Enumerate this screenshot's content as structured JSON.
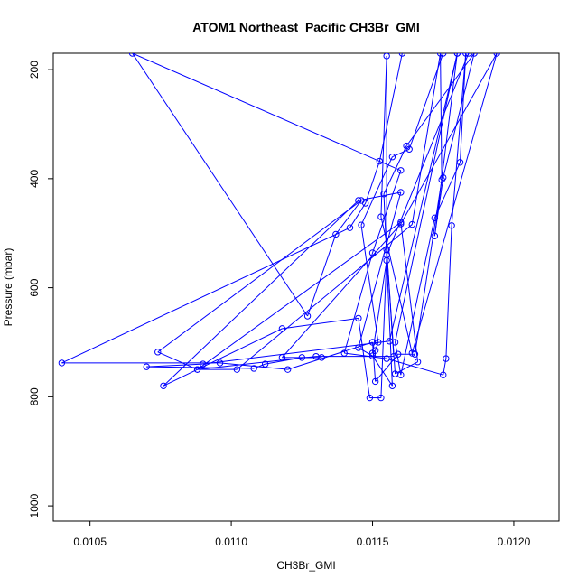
{
  "chart_data": {
    "type": "line",
    "title": "ATOM1 Northeast_Pacific CH3Br_GMI",
    "xlabel": "CH3Br_GMI",
    "ylabel": "Pressure (mbar)",
    "xlim": [
      0.01037,
      0.01216
    ],
    "ylim": [
      1028,
      170
    ],
    "y_reversed": true,
    "grid": false,
    "xticks": [
      0.0105,
      0.011,
      0.0115,
      0.012
    ],
    "xtick_labels": [
      "0.0105",
      "0.0110",
      "0.0115",
      "0.0120"
    ],
    "yticks": [
      200,
      400,
      600,
      800,
      1000
    ],
    "ytick_labels": [
      "200",
      "400",
      "600",
      "800",
      "1000"
    ],
    "colors": {
      "series": "#0000ff"
    },
    "points": [
      [
        0.011605,
        170
      ],
      [
        0.011525,
        368
      ],
      [
        0.011475,
        445
      ],
      [
        0.01142,
        490
      ],
      [
        0.0104,
        738
      ],
      [
        0.01096,
        738
      ],
      [
        0.0112,
        750
      ],
      [
        0.0115,
        700
      ],
      [
        0.01151,
        772
      ],
      [
        0.01159,
        722
      ],
      [
        0.01165,
        722
      ],
      [
        0.011745,
        402
      ],
      [
        0.01174,
        170
      ],
      [
        0.01164,
        484
      ],
      [
        0.01102,
        750
      ],
      [
        0.01088,
        750
      ],
      [
        0.0113,
        726
      ],
      [
        0.011575,
        726
      ],
      [
        0.01155,
        530
      ],
      [
        0.01158,
        758
      ],
      [
        0.01166,
        736
      ],
      [
        0.0116,
        480
      ],
      [
        0.01088,
        750
      ],
      [
        0.01074,
        718
      ],
      [
        0.01146,
        440
      ],
      [
        0.01137,
        502
      ],
      [
        0.01127,
        652
      ],
      [
        0.01065,
        170
      ],
      [
        0.0116,
        385
      ],
      [
        0.0115,
        536
      ],
      [
        0.0114,
        720
      ],
      [
        0.01155,
        730
      ],
      [
        0.01175,
        760
      ],
      [
        0.01176,
        730
      ],
      [
        0.01178,
        486
      ],
      [
        0.01183,
        170
      ],
      [
        0.01181,
        370
      ],
      [
        0.01172,
        472
      ],
      [
        0.0116,
        760
      ],
      [
        0.01158,
        700
      ],
      [
        0.0118,
        170
      ],
      [
        0.01184,
        170
      ],
      [
        0.01155,
        540
      ],
      [
        0.01153,
        802
      ],
      [
        0.01149,
        802
      ],
      [
        0.01145,
        656
      ],
      [
        0.01118,
        675
      ],
      [
        0.01076,
        780
      ],
      [
        0.01145,
        440
      ],
      [
        0.0116,
        425
      ],
      [
        0.01145,
        710
      ],
      [
        0.0115,
        725
      ],
      [
        0.01157,
        780
      ],
      [
        0.01154,
        428
      ],
      [
        0.01162,
        340
      ],
      [
        0.01186,
        170
      ],
      [
        0.01175,
        398
      ],
      [
        0.01172,
        505
      ],
      [
        0.0118,
        170
      ],
      [
        0.01156,
        698
      ],
      [
        0.0109,
        740
      ],
      [
        0.0107,
        745
      ],
      [
        0.01108,
        748
      ],
      [
        0.01112,
        740
      ],
      [
        0.01125,
        728
      ],
      [
        0.01132,
        728
      ],
      [
        0.01118,
        728
      ],
      [
        0.0116,
        483
      ],
      [
        0.01194,
        170
      ],
      [
        0.01164,
        720
      ],
      [
        0.01153,
        470
      ],
      [
        0.01155,
        175
      ],
      [
        0.01155,
        550
      ],
      [
        0.0115,
        720
      ],
      [
        0.01151,
        715
      ],
      [
        0.01152,
        700
      ],
      [
        0.01146,
        485
      ],
      [
        0.01157,
        360
      ],
      [
        0.01163,
        346
      ],
      [
        0.01175,
        170
      ]
    ]
  }
}
